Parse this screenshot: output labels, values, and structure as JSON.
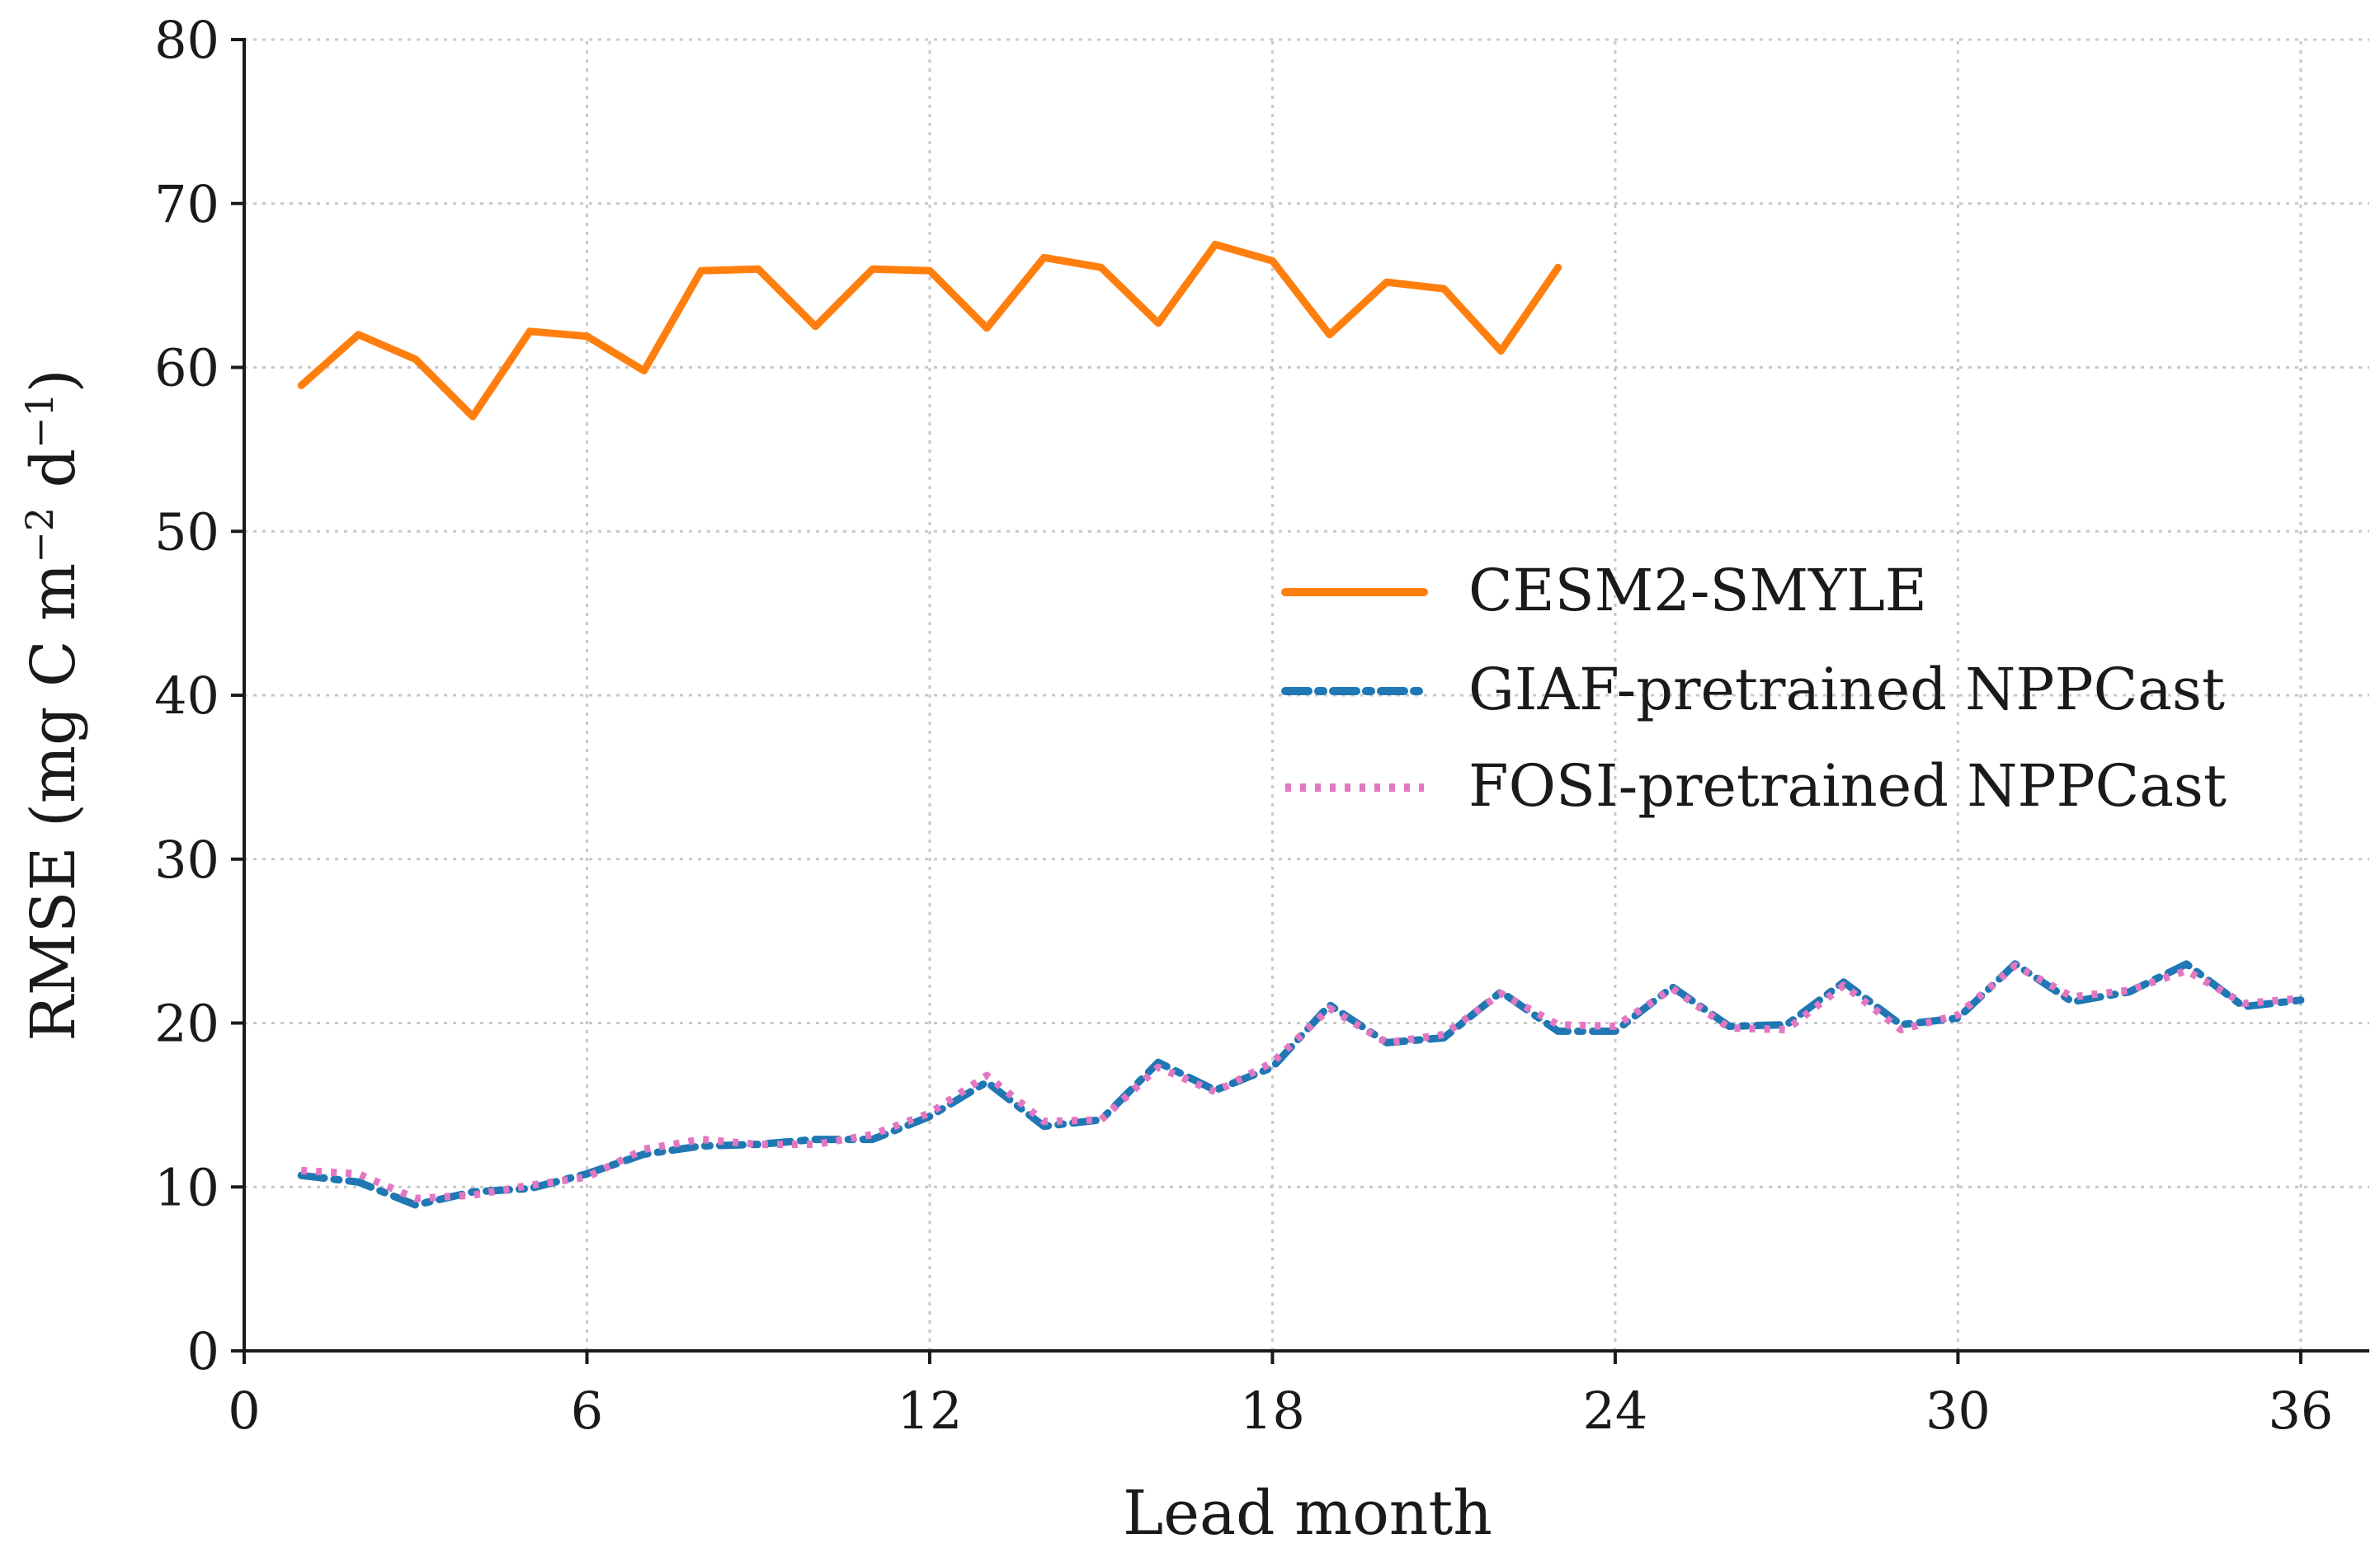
{
  "chart_data": {
    "type": "line",
    "title": "",
    "xlabel": "Lead month",
    "ylabel": {
      "prefix": "RMSE (mg C m",
      "exp1": "−2",
      "mid": " d",
      "exp2": "−1",
      "suffix": ")"
    },
    "xlim": [
      0,
      37.2
    ],
    "ylim": [
      0,
      80
    ],
    "xticks": [
      0,
      6,
      12,
      18,
      24,
      30,
      36
    ],
    "yticks": [
      0,
      10,
      20,
      30,
      40,
      50,
      60,
      70,
      80
    ],
    "grid": true,
    "legend_position": "center-right",
    "series": [
      {
        "name": "CESM2-SMYLE",
        "color": "#ff7f0e",
        "style": "solid",
        "x": [
          1,
          2,
          3,
          4,
          5,
          6,
          7,
          8,
          9,
          10,
          11,
          12,
          13,
          14,
          15,
          16,
          17,
          18,
          19,
          20,
          21,
          22,
          23
        ],
        "values": [
          58.9,
          62.0,
          60.5,
          57.0,
          62.2,
          61.9,
          59.8,
          65.9,
          66.0,
          62.5,
          66.0,
          65.9,
          62.4,
          66.7,
          66.1,
          62.7,
          67.5,
          66.5,
          62.0,
          65.2,
          64.8,
          61.0,
          66.1
        ]
      },
      {
        "name": "GIAF-pretrained NPPCast",
        "color": "#1f77b4",
        "style": "dashdot",
        "x": [
          1,
          2,
          3,
          4,
          5,
          6,
          7,
          8,
          9,
          10,
          11,
          12,
          13,
          14,
          15,
          16,
          17,
          18,
          19,
          20,
          21,
          22,
          23,
          24,
          25,
          26,
          27,
          28,
          29,
          30,
          31,
          32,
          33,
          34,
          35,
          36
        ],
        "values": [
          10.7,
          10.3,
          8.9,
          9.7,
          9.9,
          10.8,
          12.0,
          12.5,
          12.6,
          12.9,
          12.9,
          14.3,
          16.4,
          13.7,
          14.1,
          17.6,
          15.9,
          17.3,
          21.1,
          18.8,
          19.1,
          21.9,
          19.5,
          19.5,
          22.2,
          19.8,
          19.9,
          22.5,
          19.9,
          20.3,
          23.6,
          21.3,
          21.9,
          23.6,
          21.0,
          21.4
        ]
      },
      {
        "name": "FOSI-pretrained NPPCast",
        "color": "#e377c2",
        "style": "dotted",
        "x": [
          1,
          2,
          3,
          4,
          5,
          6,
          7,
          8,
          9,
          10,
          11,
          12,
          13,
          14,
          15,
          16,
          17,
          18,
          19,
          20,
          21,
          22,
          23,
          24,
          25,
          26,
          27,
          28,
          29,
          30,
          31,
          32,
          33,
          34,
          35,
          36
        ],
        "values": [
          11.0,
          10.8,
          9.3,
          9.5,
          10.1,
          10.6,
          12.3,
          12.9,
          12.6,
          12.6,
          13.2,
          14.5,
          16.8,
          14.0,
          14.1,
          17.3,
          15.8,
          17.6,
          20.9,
          18.8,
          19.3,
          21.8,
          19.9,
          19.8,
          22.1,
          19.7,
          19.6,
          22.3,
          19.6,
          20.5,
          23.5,
          21.6,
          22.0,
          23.2,
          21.2,
          21.5
        ]
      }
    ]
  }
}
